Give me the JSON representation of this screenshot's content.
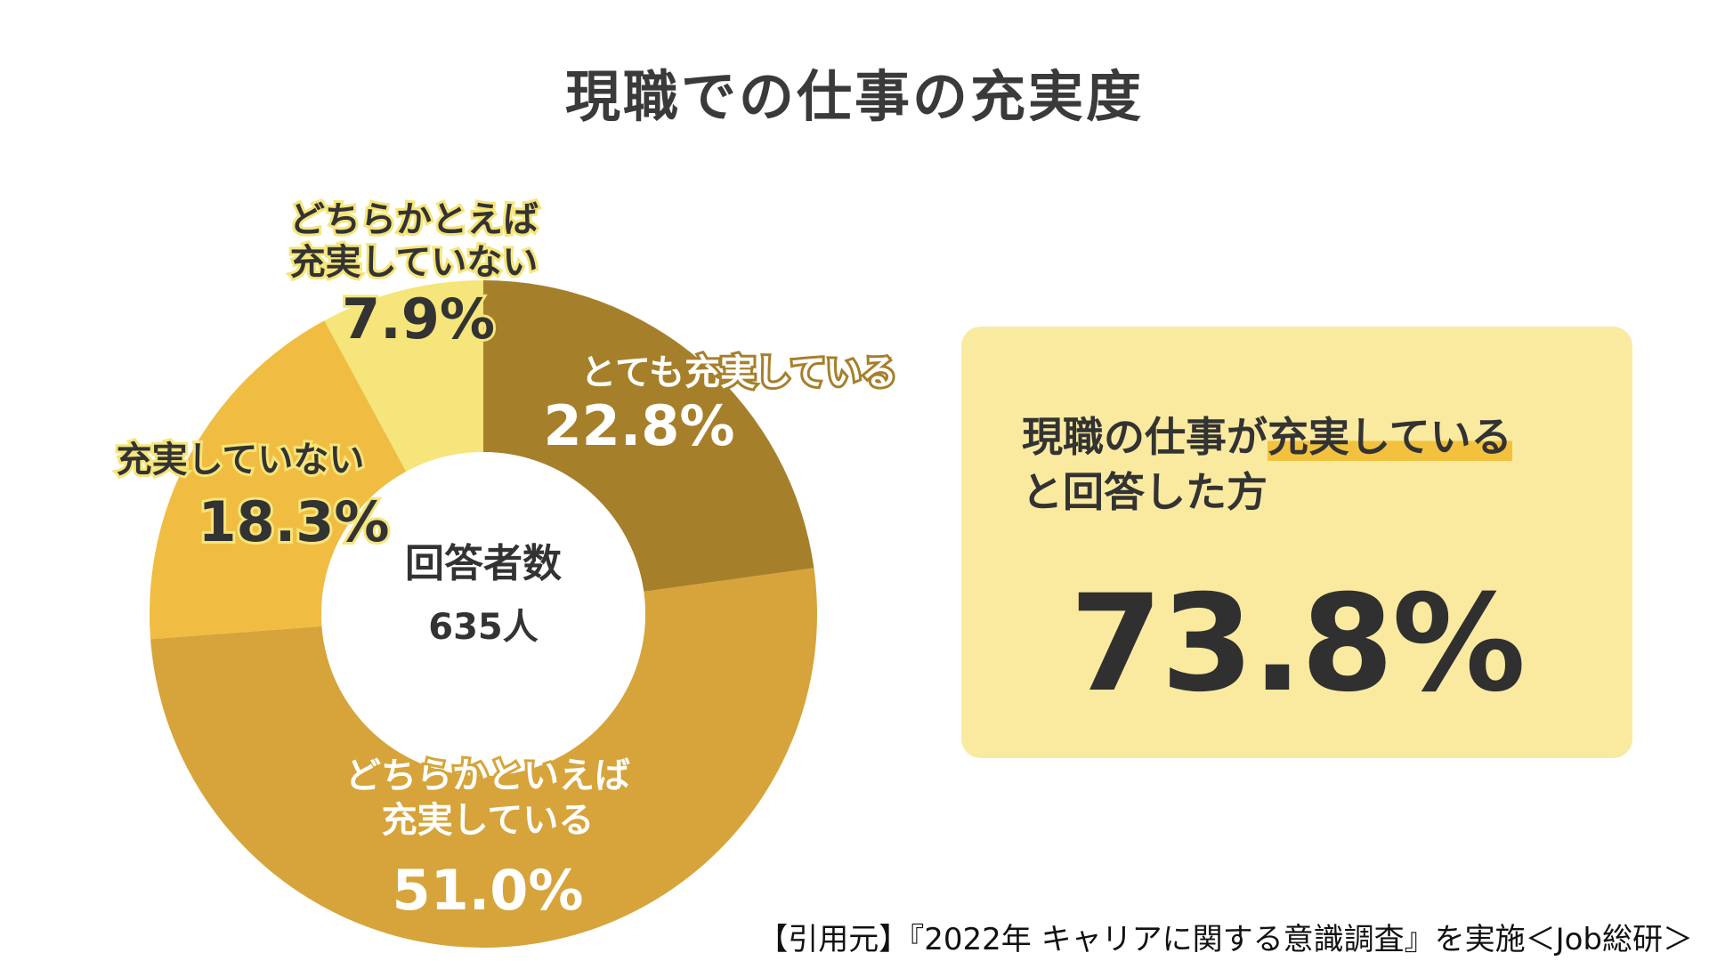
{
  "title": "現職での仕事の充実度",
  "chart_data": {
    "type": "pie",
    "donut": true,
    "center_label": "回答者数",
    "center_value": "635人",
    "slices": [
      {
        "label_lines": [
          "とても充実している"
        ],
        "value": 22.8,
        "value_text": "22.8%",
        "color": "#a67f2a"
      },
      {
        "label_lines": [
          "どちらかといえば",
          "充実している"
        ],
        "value": 51.0,
        "value_text": "51.0%",
        "color": "#d6a43a"
      },
      {
        "label_lines": [
          "充実していない"
        ],
        "value": 18.3,
        "value_text": "18.3%",
        "color": "#f0bd42"
      },
      {
        "label_lines": [
          "どちらかとえば",
          "充実していない"
        ],
        "value": 7.9,
        "value_text": "7.9%",
        "color": "#f5e57a"
      }
    ]
  },
  "summary": {
    "line1_prefix": "現職の仕事が",
    "line1_highlight": "充実している",
    "line2": "と回答した方",
    "percent": "73.8%"
  },
  "citation": "【引用元】『2022年 キャリアに関する意識調査』を実施＜Job総研＞"
}
